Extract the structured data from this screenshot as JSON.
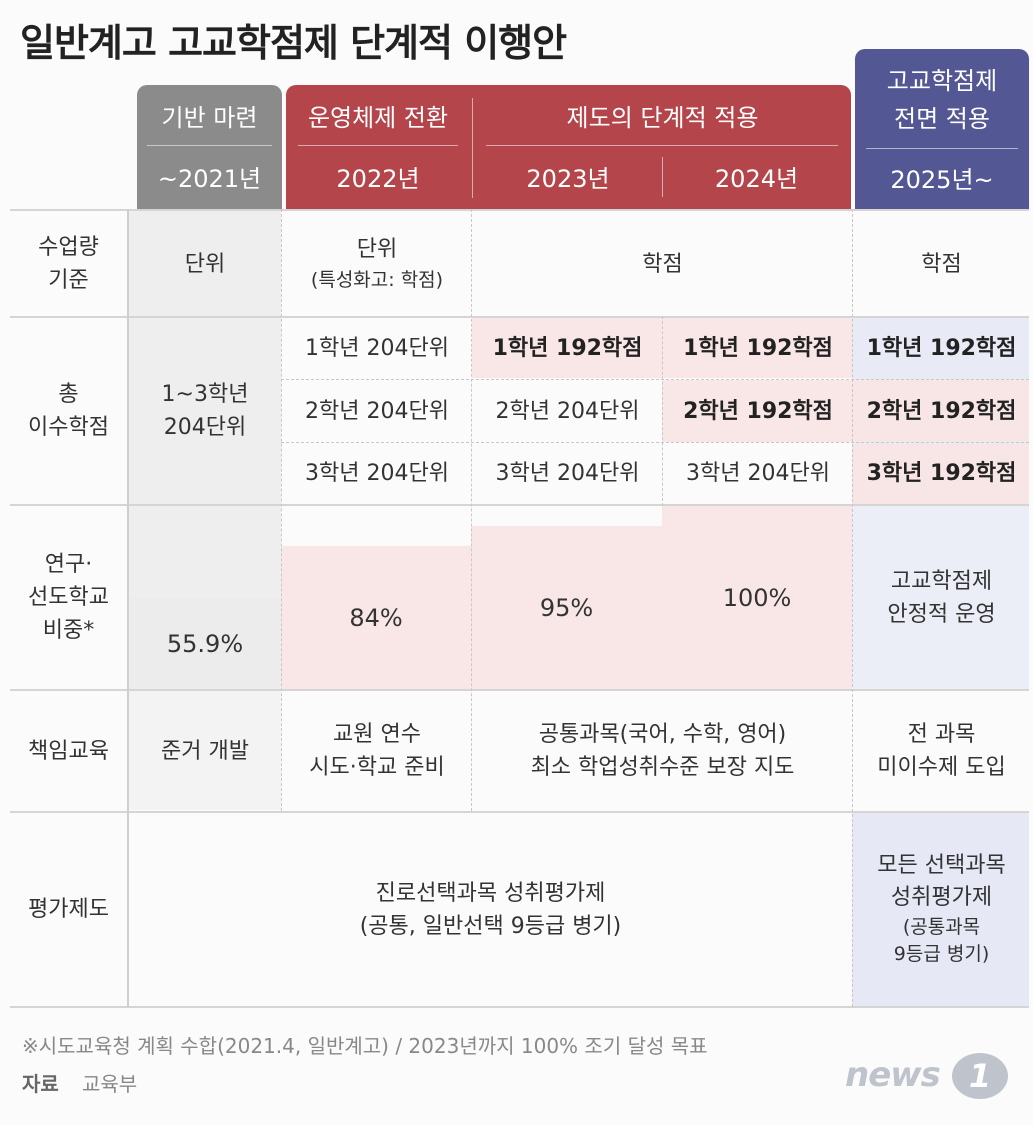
{
  "title": "일반계고 고교학점제 단계적 이행안",
  "header": {
    "phase1": "기반 마련",
    "phase1_year": "~2021년",
    "phase2": "운영체제 전환",
    "phase2_year": "2022년",
    "phase3": "제도의 단계적 적용",
    "phase3_year_a": "2023년",
    "phase3_year_b": "2024년",
    "phase4_line1": "고교학점제",
    "phase4_line2": "전면 적용",
    "phase4_year": "2025년~"
  },
  "rows": {
    "class_unit": {
      "label_1": "수업량",
      "label_2": "기준",
      "y2021": "단위",
      "y2022_1": "단위",
      "y2022_2": "(특성화고: 학점)",
      "y2023_24": "학점",
      "y2025": "학점"
    },
    "total_credits": {
      "label_1": "총",
      "label_2": "이수학점",
      "y2021_1": "1~3학년",
      "y2021_2": "204단위",
      "y2022": [
        "1학년 204단위",
        "2학년 204단위",
        "3학년 204단위"
      ],
      "y2023": [
        "1학년 192학점",
        "2학년 204단위",
        "3학년 204단위"
      ],
      "y2024": [
        "1학년 192학점",
        "2학년 192학점",
        "3학년 204단위"
      ],
      "y2025": [
        "1학년 192학점",
        "2학년 192학점",
        "3학년 192학점"
      ]
    },
    "research_schools": {
      "label_1": "연구·",
      "label_2": "선도학교",
      "label_3": "비중*",
      "y2021": "55.9%",
      "y2022": "84%",
      "y2023": "95%",
      "y2024": "100%",
      "y2025_1": "고교학점제",
      "y2025_2": "안정적 운영"
    },
    "responsibility": {
      "label": "책임교육",
      "y2021": "준거 개발",
      "y2022_1": "교원 연수",
      "y2022_2": "시도·학교 준비",
      "y2023_24_1": "공통과목(국어, 수학, 영어)",
      "y2023_24_2": "최소 학업성취수준 보장 지도",
      "y2025_1": "전 과목",
      "y2025_2": "미이수제 도입"
    },
    "evaluation": {
      "label": "평가제도",
      "y2021_24_1": "진로선택과목 성취평가제",
      "y2021_24_2": "(공통, 일반선택 9등급 병기)",
      "y2025_1": "모든 선택과목",
      "y2025_2": "성취평가제",
      "y2025_3": "(공통과목",
      "y2025_4": "9등급 병기)"
    }
  },
  "footnote": "※시도교육청 계획 수합(2021.4, 일반계고) / 2023년까지 100% 조기 달성 목표",
  "source_label": "자료",
  "source_value": "교육부",
  "logo_text": "news",
  "logo_badge": "1"
}
